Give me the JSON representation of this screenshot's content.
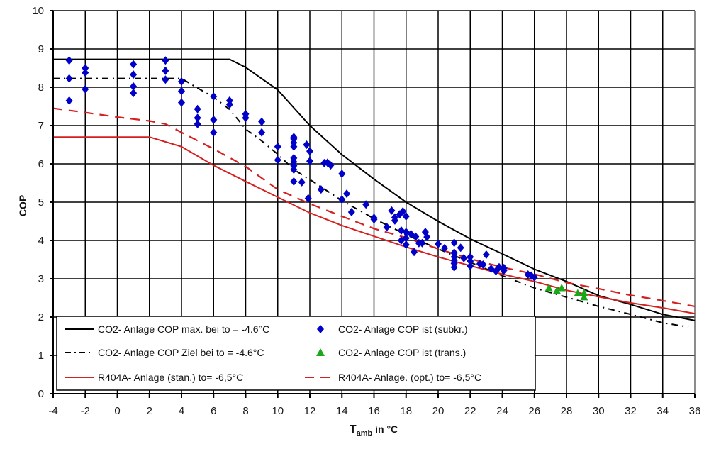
{
  "chart_data": {
    "type": "line",
    "title": "",
    "xlabel_main": "T",
    "xlabel_sub": "amb",
    "xlabel_suffix": " in °C",
    "ylabel": "COP",
    "xlim": [
      -4,
      36
    ],
    "ylim": [
      0,
      10
    ],
    "xticks": [
      -4,
      -2,
      0,
      2,
      4,
      6,
      8,
      10,
      12,
      14,
      16,
      18,
      20,
      22,
      24,
      26,
      28,
      30,
      32,
      34,
      36
    ],
    "yticks": [
      0,
      1,
      2,
      3,
      4,
      5,
      6,
      7,
      8,
      9,
      10
    ],
    "grid": true,
    "legend_position": "bottom-left",
    "series": [
      {
        "name": "CO2- Anlage COP max. bei to = -4.6°C",
        "kind": "line",
        "style": "solid",
        "color": "#000000",
        "points": [
          [
            -4,
            8.73
          ],
          [
            7,
            8.73
          ],
          [
            8,
            8.52
          ],
          [
            10,
            7.93
          ],
          [
            12,
            7.0
          ],
          [
            14,
            6.24
          ],
          [
            16,
            5.6
          ],
          [
            18,
            5.0
          ],
          [
            20,
            4.5
          ],
          [
            22,
            4.04
          ],
          [
            24,
            3.65
          ],
          [
            26,
            3.25
          ],
          [
            28,
            2.93
          ],
          [
            30,
            2.56
          ],
          [
            32,
            2.33
          ],
          [
            34,
            2.07
          ],
          [
            36,
            1.91
          ]
        ]
      },
      {
        "name": "CO2- Anlage COP Ziel bei to = -4.6°C",
        "kind": "line",
        "style": "dashdot",
        "color": "#000000",
        "points": [
          [
            -4,
            8.23
          ],
          [
            4,
            8.23
          ],
          [
            5,
            7.98
          ],
          [
            6,
            7.74
          ],
          [
            7,
            7.42
          ],
          [
            8,
            6.91
          ],
          [
            9,
            6.6
          ],
          [
            10,
            6.25
          ],
          [
            11,
            5.85
          ],
          [
            12,
            5.59
          ],
          [
            14,
            5.04
          ],
          [
            16,
            4.57
          ],
          [
            18,
            4.15
          ],
          [
            20,
            3.78
          ],
          [
            22,
            3.43
          ],
          [
            24,
            3.08
          ],
          [
            26,
            2.76
          ],
          [
            28,
            2.52
          ],
          [
            30,
            2.28
          ],
          [
            32,
            2.07
          ],
          [
            34,
            1.85
          ],
          [
            35.6,
            1.74
          ]
        ]
      },
      {
        "name": "R404A- Anlage (stan.) to= -6,5°C",
        "kind": "line",
        "style": "solid",
        "color": "#d42020",
        "points": [
          [
            -4,
            6.7
          ],
          [
            2,
            6.7
          ],
          [
            4,
            6.45
          ],
          [
            6,
            5.96
          ],
          [
            8,
            5.54
          ],
          [
            10,
            5.13
          ],
          [
            12,
            4.72
          ],
          [
            14,
            4.39
          ],
          [
            16,
            4.11
          ],
          [
            18,
            3.83
          ],
          [
            20,
            3.57
          ],
          [
            22,
            3.34
          ],
          [
            24,
            3.12
          ],
          [
            26,
            2.93
          ],
          [
            28,
            2.7
          ],
          [
            30,
            2.53
          ],
          [
            32,
            2.37
          ],
          [
            34,
            2.24
          ],
          [
            36,
            2.09
          ]
        ]
      },
      {
        "name": "R404A- Anlage. (opt.) to= -6,5°C",
        "kind": "line",
        "style": "dashed",
        "color": "#d42020",
        "points": [
          [
            -4,
            7.45
          ],
          [
            -2,
            7.34
          ],
          [
            0,
            7.22
          ],
          [
            2,
            7.12
          ],
          [
            3,
            7.04
          ],
          [
            4,
            6.82
          ],
          [
            6,
            6.39
          ],
          [
            8,
            5.93
          ],
          [
            10,
            5.33
          ],
          [
            12,
            4.96
          ],
          [
            14,
            4.63
          ],
          [
            16,
            4.31
          ],
          [
            18,
            4.07
          ],
          [
            20,
            3.78
          ],
          [
            22,
            3.52
          ],
          [
            24,
            3.3
          ],
          [
            26,
            3.12
          ],
          [
            28,
            2.9
          ],
          [
            30,
            2.74
          ],
          [
            32,
            2.57
          ],
          [
            34,
            2.43
          ],
          [
            36,
            2.28
          ]
        ]
      },
      {
        "name": "CO2- Anlage COP ist (subkr.)",
        "kind": "scatter",
        "marker": "diamond",
        "color": "#0000c8",
        "points": [
          [
            -3,
            8.7
          ],
          [
            -3,
            8.23
          ],
          [
            -3,
            7.65
          ],
          [
            -2,
            8.5
          ],
          [
            -2,
            8.38
          ],
          [
            -2,
            7.95
          ],
          [
            1,
            8.6
          ],
          [
            1,
            8.33
          ],
          [
            1,
            8.02
          ],
          [
            1,
            7.85
          ],
          [
            3,
            8.7
          ],
          [
            3,
            8.43
          ],
          [
            3,
            8.2
          ],
          [
            4,
            8.15
          ],
          [
            4,
            7.9
          ],
          [
            4,
            7.6
          ],
          [
            5,
            7.43
          ],
          [
            5,
            7.2
          ],
          [
            5,
            7.04
          ],
          [
            6,
            7.76
          ],
          [
            6,
            7.15
          ],
          [
            6,
            6.82
          ],
          [
            7,
            7.65
          ],
          [
            7,
            7.55
          ],
          [
            8,
            7.3
          ],
          [
            8,
            7.2
          ],
          [
            9,
            7.1
          ],
          [
            9,
            6.82
          ],
          [
            10,
            6.45
          ],
          [
            10,
            6.1
          ],
          [
            11,
            6.7
          ],
          [
            11,
            6.65
          ],
          [
            11,
            6.55
          ],
          [
            11,
            6.45
          ],
          [
            11,
            6.15
          ],
          [
            11,
            6.05
          ],
          [
            11,
            5.95
          ],
          [
            11,
            5.85
          ],
          [
            11,
            5.54
          ],
          [
            11.5,
            5.52
          ],
          [
            11.8,
            6.5
          ],
          [
            12,
            6.33
          ],
          [
            12,
            6.07
          ],
          [
            11.9,
            5.1
          ],
          [
            12.9,
            6.02
          ],
          [
            13.1,
            6.03
          ],
          [
            13.3,
            5.96
          ],
          [
            12.7,
            5.33
          ],
          [
            14,
            5.74
          ],
          [
            14.3,
            5.22
          ],
          [
            14,
            5.07
          ],
          [
            14.6,
            4.74
          ],
          [
            15.5,
            4.94
          ],
          [
            16,
            4.59
          ],
          [
            16,
            4.55
          ],
          [
            16.8,
            4.35
          ],
          [
            17.1,
            4.78
          ],
          [
            17.3,
            4.6
          ],
          [
            17.3,
            4.52
          ],
          [
            17.6,
            4.68
          ],
          [
            17.8,
            4.76
          ],
          [
            18,
            4.63
          ],
          [
            17.7,
            4.26
          ],
          [
            18,
            4.22
          ],
          [
            18.3,
            4.17
          ],
          [
            17.7,
            4.0
          ],
          [
            18,
            4.06
          ],
          [
            18.6,
            4.1
          ],
          [
            18,
            3.89
          ],
          [
            18.5,
            3.7
          ],
          [
            18.8,
            3.93
          ],
          [
            19.0,
            3.93
          ],
          [
            19.2,
            4.22
          ],
          [
            19.3,
            4.09
          ],
          [
            20,
            3.91
          ],
          [
            20.4,
            3.8
          ],
          [
            21,
            3.94
          ],
          [
            21,
            3.68
          ],
          [
            21,
            3.67
          ],
          [
            21,
            3.57
          ],
          [
            21,
            3.48
          ],
          [
            21,
            3.4
          ],
          [
            21,
            3.3
          ],
          [
            21.4,
            3.81
          ],
          [
            21.6,
            3.54
          ],
          [
            22,
            3.57
          ],
          [
            22,
            3.46
          ],
          [
            22,
            3.33
          ],
          [
            22.6,
            3.39
          ],
          [
            22.8,
            3.37
          ],
          [
            23,
            3.63
          ],
          [
            23.3,
            3.26
          ],
          [
            23.6,
            3.2
          ],
          [
            23.8,
            3.3
          ],
          [
            24.1,
            3.28
          ],
          [
            24.1,
            3.22
          ],
          [
            25.6,
            3.11
          ],
          [
            25.8,
            3.08
          ],
          [
            26,
            3.04
          ]
        ]
      },
      {
        "name": "CO2- Anlage COP ist (trans.)",
        "kind": "scatter",
        "marker": "triangle",
        "color": "#1aa81a",
        "points": [
          [
            26.9,
            2.76
          ],
          [
            27.4,
            2.69
          ],
          [
            27.7,
            2.76
          ],
          [
            28.7,
            2.62
          ],
          [
            29.1,
            2.63
          ],
          [
            29.1,
            2.52
          ]
        ]
      }
    ],
    "legend": {
      "items": [
        {
          "label": "CO2- Anlage COP max. bei to = -4.6°C",
          "series": 0
        },
        {
          "label": "CO2- Anlage COP ist (subkr.)",
          "series": 4
        },
        {
          "label": "CO2- Anlage COP Ziel bei to = -4.6°C",
          "series": 1
        },
        {
          "label": "CO2- Anlage COP ist (trans.)",
          "series": 5
        },
        {
          "label": "R404A- Anlage (stan.) to= -6,5°C",
          "series": 2
        },
        {
          "label": "R404A- Anlage. (opt.) to= -6,5°C",
          "series": 3
        }
      ]
    }
  }
}
